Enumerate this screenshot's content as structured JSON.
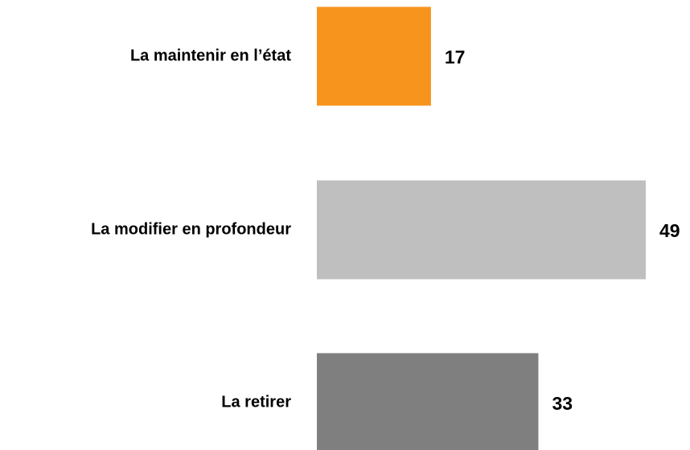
{
  "chart_data": {
    "type": "bar",
    "orientation": "horizontal",
    "categories": [
      "La maintenir en l’état",
      "La modifier en profondeur",
      "La retirer"
    ],
    "values": [
      17,
      49,
      33
    ],
    "colors": [
      "#f7941d",
      "#bfbfbf",
      "#7f7f7f"
    ]
  }
}
